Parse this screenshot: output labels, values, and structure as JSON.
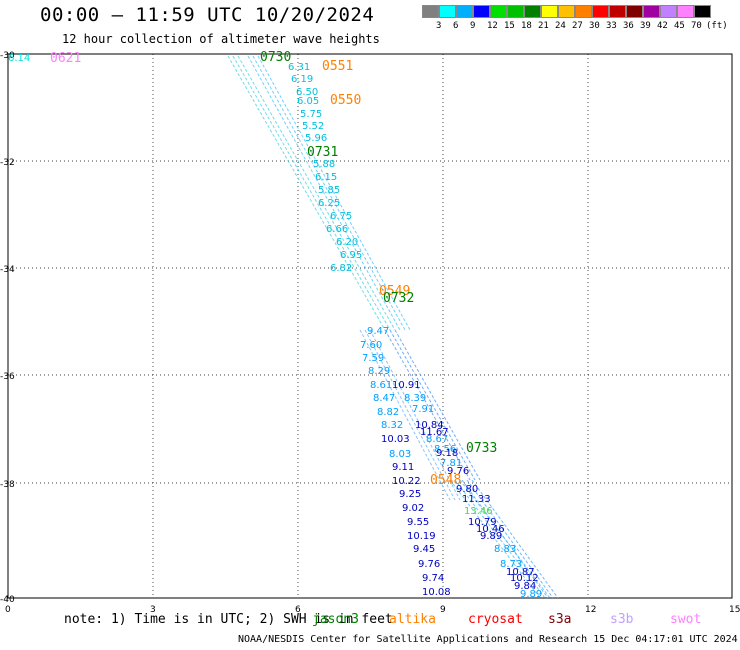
{
  "header": {
    "title": "00:00 — 11:59 UTC 10/20/2024",
    "subtitle": "12 hour collection of altimeter wave heights"
  },
  "legend": {
    "colors": [
      "#808080",
      "#00ffff",
      "#00b0ff",
      "#0000ff",
      "#00e000",
      "#00c000",
      "#008000",
      "#ffff00",
      "#ffc000",
      "#ff8000",
      "#ff0000",
      "#c00000",
      "#800000",
      "#a000a0",
      "#c080ff",
      "#ff80ff",
      "#000000"
    ],
    "labels": [
      "3",
      "6",
      "9",
      "12",
      "15",
      "18",
      "21",
      "24",
      "27",
      "30",
      "33",
      "36",
      "39",
      "42",
      "45",
      "70",
      "(ft)"
    ]
  },
  "axes": {
    "x_ticks": [
      "0",
      "3",
      "6",
      "9",
      "12",
      "15"
    ],
    "y_ticks": [
      "-30",
      "-32",
      "-34",
      "-36",
      "-38",
      "-40"
    ]
  },
  "times": [
    {
      "label": "0621",
      "color": "#ff80ff"
    },
    {
      "label": "0730",
      "color": "#008000"
    },
    {
      "label": "0551",
      "color": "#ff8000"
    },
    {
      "label": "0550",
      "color": "#ff8000"
    },
    {
      "label": "0731",
      "color": "#008000"
    },
    {
      "label": "0549",
      "color": "#ff8000"
    },
    {
      "label": "0732",
      "color": "#008000"
    },
    {
      "label": "0733",
      "color": "#008000"
    },
    {
      "label": "0548",
      "color": "#ff8000"
    }
  ],
  "values": [
    {
      "v": "6.14",
      "c": "#00e0e0"
    },
    {
      "v": "6.31",
      "c": "#00c0e0"
    },
    {
      "v": "6.19",
      "c": "#00c0e0"
    },
    {
      "v": "6.50",
      "c": "#00c0e0"
    },
    {
      "v": "6.05",
      "c": "#00c0e0"
    },
    {
      "v": "5.75",
      "c": "#00c0e0"
    },
    {
      "v": "5.52",
      "c": "#00c0e0"
    },
    {
      "v": "5.96",
      "c": "#00c0e0"
    },
    {
      "v": "5.88",
      "c": "#00c0e0"
    },
    {
      "v": "6.15",
      "c": "#00c0e0"
    },
    {
      "v": "5.85",
      "c": "#00c0e0"
    },
    {
      "v": "6.25",
      "c": "#00c0e0"
    },
    {
      "v": "6.75",
      "c": "#00c0e0"
    },
    {
      "v": "6.66",
      "c": "#00c0e0"
    },
    {
      "v": "6.20",
      "c": "#00c0e0"
    },
    {
      "v": "6.95",
      "c": "#00c0e0"
    },
    {
      "v": "6.82",
      "c": "#00c0e0"
    },
    {
      "v": "9.47",
      "c": "#00a0ff"
    },
    {
      "v": "7.60",
      "c": "#00a0ff"
    },
    {
      "v": "7.59",
      "c": "#00a0ff"
    },
    {
      "v": "8.29",
      "c": "#00a0ff"
    },
    {
      "v": "8.61",
      "c": "#00a0ff"
    },
    {
      "v": "10.91",
      "c": "#0000c0"
    },
    {
      "v": "8.47",
      "c": "#00a0ff"
    },
    {
      "v": "8.39",
      "c": "#00a0ff"
    },
    {
      "v": "8.82",
      "c": "#00a0ff"
    },
    {
      "v": "7.91",
      "c": "#00a0ff"
    },
    {
      "v": "8.32",
      "c": "#00a0ff"
    },
    {
      "v": "10.84",
      "c": "#0000c0"
    },
    {
      "v": "11.67",
      "c": "#0000c0"
    },
    {
      "v": "10.03",
      "c": "#0000c0"
    },
    {
      "v": "8.67",
      "c": "#00a0ff"
    },
    {
      "v": "8.56",
      "c": "#00a0ff"
    },
    {
      "v": "8.03",
      "c": "#00a0ff"
    },
    {
      "v": "9.18",
      "c": "#0000c0"
    },
    {
      "v": "7.81",
      "c": "#00a0ff"
    },
    {
      "v": "9.11",
      "c": "#0000c0"
    },
    {
      "v": "9.76",
      "c": "#0000c0"
    },
    {
      "v": "10.22",
      "c": "#0000c0"
    },
    {
      "v": "9.80",
      "c": "#0000c0"
    },
    {
      "v": "9.25",
      "c": "#0000c0"
    },
    {
      "v": "11.33",
      "c": "#0000c0"
    },
    {
      "v": "9.02",
      "c": "#0000c0"
    },
    {
      "v": "13.46",
      "c": "#40e040"
    },
    {
      "v": "9.55",
      "c": "#0000c0"
    },
    {
      "v": "10.79",
      "c": "#0000c0"
    },
    {
      "v": "10.46",
      "c": "#0000c0"
    },
    {
      "v": "10.19",
      "c": "#0000c0"
    },
    {
      "v": "9.89",
      "c": "#0000c0"
    },
    {
      "v": "9.45",
      "c": "#0000c0"
    },
    {
      "v": "8.83",
      "c": "#00a0ff"
    },
    {
      "v": "9.76",
      "c": "#0000c0"
    },
    {
      "v": "8.73",
      "c": "#00a0ff"
    },
    {
      "v": "10.87",
      "c": "#0000c0"
    },
    {
      "v": "9.74",
      "c": "#0000c0"
    },
    {
      "v": "10.12",
      "c": "#0000c0"
    },
    {
      "v": "9.84",
      "c": "#0000c0"
    },
    {
      "v": "10.08",
      "c": "#0000c0"
    },
    {
      "v": "9.89",
      "c": "#00a0ff"
    }
  ],
  "note": "note: 1) Time is in UTC; 2) SWH is in feet",
  "satellites": [
    {
      "name": "jason3",
      "color": "#008000"
    },
    {
      "name": "altika",
      "color": "#ff8000"
    },
    {
      "name": "cryosat",
      "color": "#ff0000"
    },
    {
      "name": "s3a",
      "color": "#800000"
    },
    {
      "name": "s3b",
      "color": "#c0a0ff"
    },
    {
      "name": "swot",
      "color": "#ff80ff"
    }
  ],
  "footer": "NOAA/NESDIS Center for Satellite Applications and Research   15 Dec 04:17:01 UTC 2024"
}
